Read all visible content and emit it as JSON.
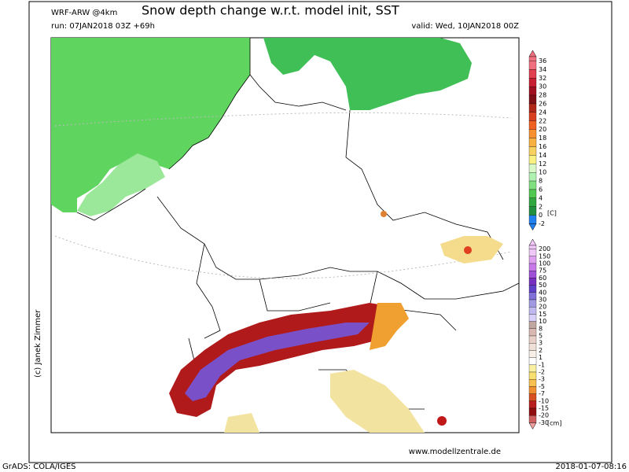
{
  "header": {
    "model": "WRF-ARW @4km",
    "title": "Snow depth change w.r.t. model init, SST",
    "run": "run: 07JAN2018 03Z +69h",
    "valid": "valid: Wed, 10JAN2018 00Z"
  },
  "credit": "(c) Janek Zimmer",
  "website": "www.modellzentrale.de",
  "footer": {
    "software": "GrADS: COLA/IGES",
    "timestamp": "2018-01-07-08:16"
  },
  "sst_colorbar": {
    "labels": [
      "36",
      "34",
      "32",
      "30",
      "28",
      "26",
      "24",
      "22",
      "20",
      "18",
      "16",
      "14",
      "12",
      "10",
      "8",
      "6",
      "4",
      "2",
      "0",
      "-2"
    ],
    "unit": "[C]"
  },
  "snow_colorbar": {
    "labels": [
      "200",
      "150",
      "100",
      "75",
      "60",
      "50",
      "40",
      "30",
      "20",
      "15",
      "10",
      "8",
      "5",
      "3",
      "2",
      "1",
      "-1",
      "-2",
      "-3",
      "-5",
      "-7",
      "-10",
      "-15",
      "-20",
      "-30"
    ],
    "unit": "[cm]"
  }
}
